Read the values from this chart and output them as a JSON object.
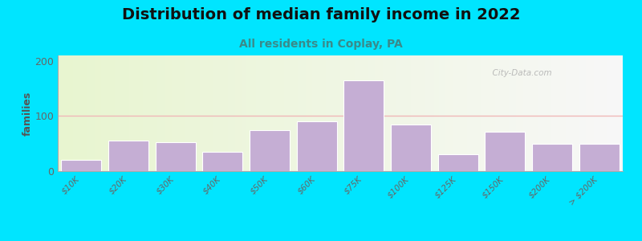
{
  "title": "Distribution of median family income in 2022",
  "subtitle": "All residents in Coplay, PA",
  "xlabel": "",
  "ylabel": "families",
  "categories": [
    "$10K",
    "$20K",
    "$30K",
    "$40K",
    "$50K",
    "$60K",
    "$75K",
    "$100K",
    "$125K",
    "$150K",
    "$200K",
    "> $200K"
  ],
  "values": [
    20,
    55,
    52,
    35,
    75,
    90,
    165,
    85,
    30,
    72,
    50,
    50
  ],
  "bar_color": "#c5aed4",
  "bar_edgecolor": "#ffffff",
  "background_outer": "#00e5ff",
  "bg_left_color": "#e8f5d0",
  "bg_right_color": "#f8f8f8",
  "grid_color": "#f0b8b8",
  "ylim": [
    0,
    210
  ],
  "yticks": [
    0,
    100,
    200
  ],
  "watermark": "City-Data.com",
  "title_fontsize": 14,
  "subtitle_fontsize": 10,
  "subtitle_color": "#3a8a8a",
  "ylabel_color": "#555555",
  "tick_label_color": "#666666"
}
